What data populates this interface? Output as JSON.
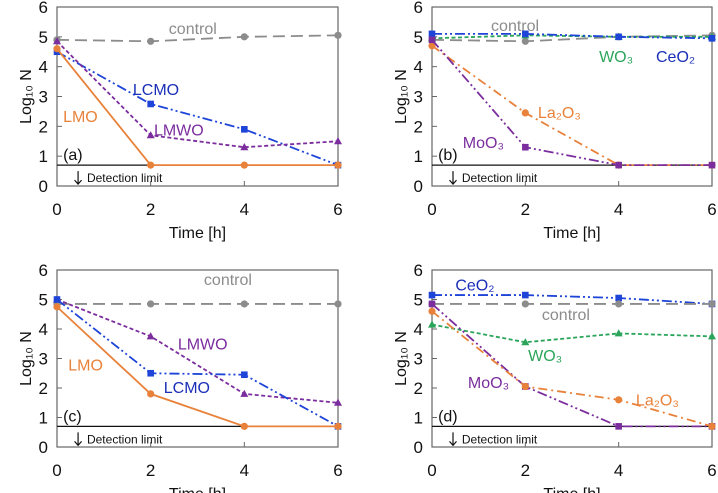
{
  "chart_data": [
    {
      "type": "line",
      "panel_label": "(a)",
      "xlabel": "Time [h]",
      "ylabel": "Log₁₀ N",
      "xlim": [
        0,
        6
      ],
      "ylim": [
        0,
        6
      ],
      "xticks": [
        "0",
        "2",
        "4",
        "6"
      ],
      "yticks": [
        "0",
        "1",
        "2",
        "3",
        "4",
        "5",
        "6"
      ],
      "x": [
        0,
        2,
        4,
        6
      ],
      "detection_limit": {
        "value": 0.7,
        "label": "Detection limit"
      },
      "series": [
        {
          "name": "control",
          "values": [
            4.9,
            4.85,
            5.0,
            5.05
          ],
          "color": "#8c8c8c",
          "marker": "circle",
          "style": "long-dash"
        },
        {
          "name": "LCMO",
          "values": [
            4.5,
            2.75,
            1.9,
            0.7
          ],
          "color": "#1e44d8",
          "marker": "square",
          "style": "dash-dot-dot"
        },
        {
          "name": "LMWO",
          "values": [
            4.85,
            1.7,
            1.3,
            1.5
          ],
          "color": "#7b2d9e",
          "marker": "triangle",
          "style": "short-dash"
        },
        {
          "name": "LMO",
          "values": [
            4.6,
            0.7,
            0.7,
            0.7
          ],
          "color": "#e8823a",
          "marker": "circle",
          "style": "solid"
        }
      ]
    },
    {
      "type": "line",
      "panel_label": "(b)",
      "xlabel": "Time [h]",
      "ylabel": "Log₁₀ N",
      "xlim": [
        0,
        6
      ],
      "ylim": [
        0,
        6
      ],
      "xticks": [
        "0",
        "2",
        "4",
        "6"
      ],
      "yticks": [
        "0",
        "1",
        "2",
        "3",
        "4",
        "5",
        "6"
      ],
      "x": [
        0,
        2,
        4,
        6
      ],
      "detection_limit": {
        "value": 0.7,
        "label": "Detection limit"
      },
      "series": [
        {
          "name": "control",
          "values": [
            4.9,
            4.85,
            5.0,
            5.05
          ],
          "color": "#8c8c8c",
          "marker": "circle",
          "style": "long-dash"
        },
        {
          "name": "WO₃",
          "values": [
            4.95,
            5.05,
            5.0,
            5.0
          ],
          "color": "#2aa55a",
          "marker": "triangle",
          "style": "short-dash"
        },
        {
          "name": "CeO₂",
          "values": [
            5.1,
            5.1,
            5.0,
            4.95
          ],
          "color": "#1e44d8",
          "marker": "square",
          "style": "dash-dot-dot"
        },
        {
          "name": "La₂O₃",
          "values": [
            4.7,
            2.45,
            0.7,
            0.7
          ],
          "color": "#e8823a",
          "marker": "circle",
          "style": "dash-dot"
        },
        {
          "name": "MoO₃",
          "values": [
            4.9,
            1.3,
            0.7,
            0.7
          ],
          "color": "#7b2d9e",
          "marker": "square",
          "style": "dash-dot-dot"
        }
      ]
    },
    {
      "type": "line",
      "panel_label": "(c)",
      "xlabel": "Time [h]",
      "ylabel": "Log₁₀ N",
      "xlim": [
        0,
        6
      ],
      "ylim": [
        0,
        6
      ],
      "xticks": [
        "0",
        "2",
        "4",
        "6"
      ],
      "yticks": [
        "0",
        "1",
        "2",
        "3",
        "4",
        "5",
        "6"
      ],
      "x": [
        0,
        2,
        4,
        6
      ],
      "detection_limit": {
        "value": 0.7,
        "label": "Detection limit"
      },
      "series": [
        {
          "name": "control",
          "values": [
            4.85,
            4.85,
            4.85,
            4.85
          ],
          "color": "#8c8c8c",
          "marker": "circle",
          "style": "long-dash"
        },
        {
          "name": "LMWO",
          "values": [
            5.0,
            3.75,
            1.8,
            1.5
          ],
          "color": "#7b2d9e",
          "marker": "triangle",
          "style": "short-dash"
        },
        {
          "name": "LCMO",
          "values": [
            5.0,
            2.5,
            2.45,
            0.7
          ],
          "color": "#1e44d8",
          "marker": "square",
          "style": "dash-dot-dot"
        },
        {
          "name": "LMO",
          "values": [
            4.75,
            1.8,
            0.7,
            0.7
          ],
          "color": "#e8823a",
          "marker": "circle",
          "style": "solid"
        }
      ]
    },
    {
      "type": "line",
      "panel_label": "(d)",
      "xlabel": "Time [h]",
      "ylabel": "Log₁₀ N",
      "xlim": [
        0,
        6
      ],
      "ylim": [
        0,
        6
      ],
      "xticks": [
        "0",
        "2",
        "4",
        "6"
      ],
      "yticks": [
        "0",
        "1",
        "2",
        "3",
        "4",
        "5",
        "6"
      ],
      "x": [
        0,
        2,
        4,
        6
      ],
      "detection_limit": {
        "value": 0.7,
        "label": "Detection limit"
      },
      "series": [
        {
          "name": "CeO₂",
          "values": [
            5.15,
            5.15,
            5.05,
            4.85
          ],
          "color": "#1e44d8",
          "marker": "square",
          "style": "dash-dot-dot"
        },
        {
          "name": "control",
          "values": [
            4.85,
            4.85,
            4.85,
            4.85
          ],
          "color": "#8c8c8c",
          "marker": "circle",
          "style": "long-dash"
        },
        {
          "name": "WO₃",
          "values": [
            4.15,
            3.55,
            3.85,
            3.75
          ],
          "color": "#2aa55a",
          "marker": "triangle",
          "style": "short-dash"
        },
        {
          "name": "MoO₃",
          "values": [
            4.85,
            2.05,
            0.7,
            0.7
          ],
          "color": "#7b2d9e",
          "marker": "square",
          "style": "dash-dot-dot"
        },
        {
          "name": "La₂O₃",
          "values": [
            4.6,
            2.05,
            1.6,
            0.7
          ],
          "color": "#e8823a",
          "marker": "circle",
          "style": "dash-dot"
        }
      ]
    }
  ]
}
